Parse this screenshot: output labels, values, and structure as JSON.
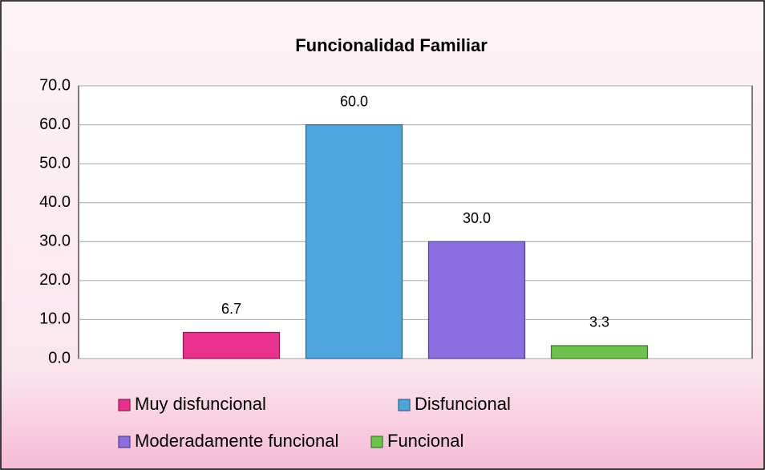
{
  "chart_data": {
    "type": "bar",
    "title": "Funcionalidad Familiar",
    "categories": [
      null
    ],
    "series": [
      {
        "name": "Muy disfuncional",
        "color": "#e8308c",
        "values": [
          6.7
        ],
        "value_labels": [
          "6.7"
        ]
      },
      {
        "name": "Disfuncional",
        "color": "#4fa6de",
        "values": [
          60
        ],
        "value_labels": [
          "60.0"
        ]
      },
      {
        "name": "Moderadamente funcional",
        "color": "#8b6fe0",
        "values": [
          30
        ],
        "value_labels": [
          "30.0"
        ]
      },
      {
        "name": "Funcional",
        "color": "#6cc24a",
        "values": [
          3.3
        ],
        "value_labels": [
          "3.3"
        ]
      }
    ],
    "ylim": [
      0,
      70
    ],
    "yticks": [
      {
        "value": 0,
        "label": "0.0"
      },
      {
        "value": 10,
        "label": "10.0"
      },
      {
        "value": 20,
        "label": "20.0"
      },
      {
        "value": 30,
        "label": "30.0"
      },
      {
        "value": 40,
        "label": "40.0"
      },
      {
        "value": 50,
        "label": "50.0"
      },
      {
        "value": 60,
        "label": "60.0"
      },
      {
        "value": 70,
        "label": "70.0"
      }
    ],
    "grid": true,
    "legend": "bottom"
  }
}
